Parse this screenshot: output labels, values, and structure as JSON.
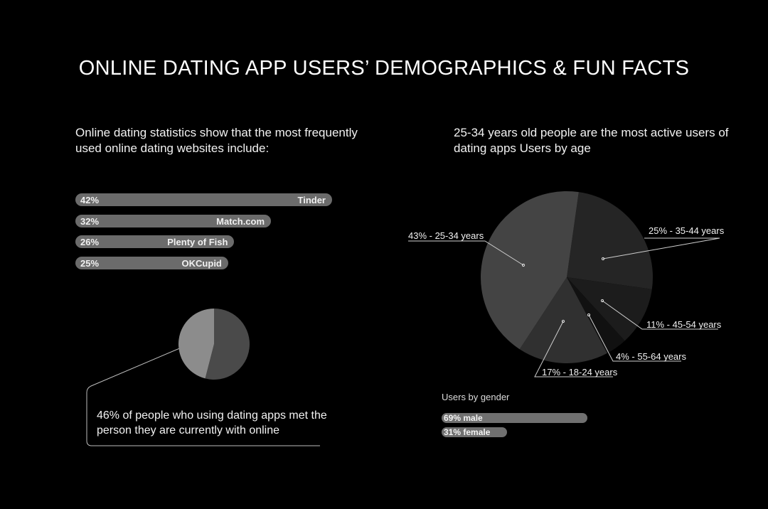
{
  "title": "ONLINE DATING APP USERS’ DEMOGRAPHICS & FUN FACTS",
  "intro_left": "Online dating statistics show that the most frequently used online dating websites include:",
  "intro_right": "25-34 years old people are the most active users of dating apps Users by age",
  "fact_text": "46%  of people who using dating apps met the person they are currently with online",
  "colors": {
    "background": "#000000",
    "bar": "#6b6b6b",
    "small_pie_highlight": "#8c8c8c",
    "small_pie_rest": "#4a4a4a"
  },
  "chart_data": [
    {
      "type": "bar",
      "orientation": "horizontal",
      "categories": [
        "Tinder",
        "Match.com",
        "Plenty of Fish",
        "OKCupid"
      ],
      "values": [
        42,
        32,
        26,
        25
      ],
      "labels": [
        "42%",
        "32%",
        "26%",
        "25%"
      ]
    },
    {
      "type": "pie",
      "slices": [
        {
          "value": 46,
          "label": "46%"
        },
        {
          "value": 54
        }
      ]
    },
    {
      "type": "pie",
      "slices": [
        {
          "value": 43,
          "label": "43% - 25-34 years",
          "color": "#444444"
        },
        {
          "value": 25,
          "label": "25% - 35-44 years",
          "color": "#252525"
        },
        {
          "value": 11,
          "label": "11% - 45-54 years",
          "color": "#1c1c1c"
        },
        {
          "value": 4,
          "label": "4% - 55-64 years",
          "color": "#111111"
        },
        {
          "value": 17,
          "label": "17% - 18-24 years",
          "color": "#303030"
        }
      ]
    },
    {
      "type": "bar",
      "orientation": "horizontal",
      "title": "Users by gender",
      "categories": [
        "male",
        "female"
      ],
      "values": [
        69,
        31
      ],
      "labels": [
        "69% male",
        "31% female"
      ]
    }
  ]
}
